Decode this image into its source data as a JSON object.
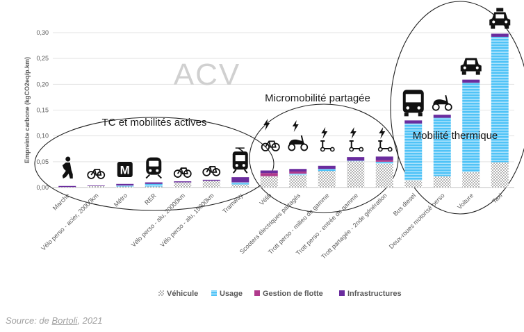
{
  "chart_data": {
    "type": "bar",
    "stacked": true,
    "ylabel": "Empreinte carbone (kgCO2eq/p.km)",
    "ylim": [
      0,
      0.3
    ],
    "yticks": [
      "0,00",
      "0,05",
      "0,10",
      "0,15",
      "0,20",
      "0,25",
      "0,30"
    ],
    "grid": true,
    "legend_position": "bottom",
    "categories": [
      "Marche",
      "Vélo perso - acier, 20000km",
      "Métro",
      "RER",
      "Vélo perso - alu, 20000km",
      "Vélo perso - alu, 15000km",
      "Tramway",
      "Vélib",
      "Scooters électriques partagés",
      "Trott perso - milieu de gamme",
      "Trott perso - entrée de gamme",
      "Trott partagée - 2nde génération",
      "Bus diesel",
      "Deux-roues motorisé perso",
      "Voiture",
      "Taxi"
    ],
    "series": [
      {
        "name": "Véhicule",
        "color": "#c8c8c8",
        "values": [
          0.001,
          0.003,
          0.002,
          0.002,
          0.01,
          0.013,
          0.006,
          0.022,
          0.024,
          0.032,
          0.051,
          0.046,
          0.014,
          0.022,
          0.03,
          0.049
        ]
      },
      {
        "name": "Usage",
        "color": "#4fc3f7",
        "values": [
          0,
          0,
          0.002,
          0.005,
          0,
          0,
          0.004,
          0,
          0.003,
          0.004,
          0.001,
          0.004,
          0.11,
          0.113,
          0.173,
          0.243
        ]
      },
      {
        "name": "Gestion de flotte",
        "color": "#b03a8c",
        "values": [
          0,
          0,
          0,
          0,
          0,
          0,
          0,
          0.006,
          0.004,
          0,
          0,
          0.003,
          0,
          0,
          0,
          0
        ]
      },
      {
        "name": "Infrastructures",
        "color": "#6a2c9e",
        "values": [
          0.002,
          0.001,
          0.003,
          0.003,
          0.002,
          0.002,
          0.01,
          0.005,
          0.005,
          0.006,
          0.007,
          0.007,
          0.006,
          0.006,
          0.006,
          0.006
        ]
      }
    ],
    "annotations": {
      "watermark": "ACV",
      "groups": [
        {
          "label": "TC et mobilités actives",
          "first": 0,
          "last": 6
        },
        {
          "label": "Micromobilité partagée",
          "first": 7,
          "last": 11
        },
        {
          "label": "Mobilité thermique",
          "first": 12,
          "last": 15
        }
      ]
    },
    "icons": [
      "walking-person-icon",
      "bicycle-icon",
      "metro-sign-icon",
      "train-icon",
      "bicycle-icon",
      "bicycle-icon",
      "tram-icon",
      "electric-bike-icon",
      "electric-scooter-icon",
      "electric-kick-scooter-icon",
      "electric-kick-scooter-icon",
      "electric-kick-scooter-icon",
      "bus-icon",
      "motor-scooter-icon",
      "car-icon",
      "taxi-icon"
    ]
  },
  "source": {
    "prefix": "Source: de ",
    "author": "Bortoli",
    "suffix": ", 2021"
  }
}
